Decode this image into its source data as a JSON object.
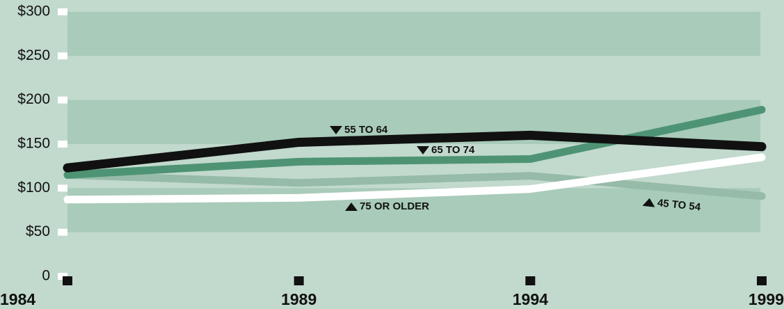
{
  "chart_data": {
    "type": "line",
    "categories": [
      "1984",
      "1989",
      "1994",
      "1999"
    ],
    "series": [
      {
        "name": "45 TO 54",
        "color": "#96bba8",
        "values": [
          115,
          106,
          114,
          91
        ]
      },
      {
        "name": "75 OR OLDER",
        "color": "#ffffff",
        "values": [
          87,
          89,
          99,
          135
        ]
      },
      {
        "name": "65 TO 74",
        "color": "#4e9474",
        "values": [
          115,
          130,
          133,
          189
        ]
      },
      {
        "name": "55 TO 64",
        "color": "#111111",
        "values": [
          123,
          152,
          160,
          147
        ]
      }
    ],
    "ylim": [
      0,
      300
    ],
    "yticks": [
      0,
      {
        "value": 50,
        "label": "$50"
      },
      {
        "value": 100,
        "label": "$100"
      },
      {
        "value": 150,
        "label": "$150"
      },
      {
        "value": 200,
        "label": "$200"
      },
      {
        "value": 250,
        "label": "$250"
      },
      {
        "value": 300,
        "label": "$300"
      }
    ],
    "band_color": "#a9cbb9"
  }
}
